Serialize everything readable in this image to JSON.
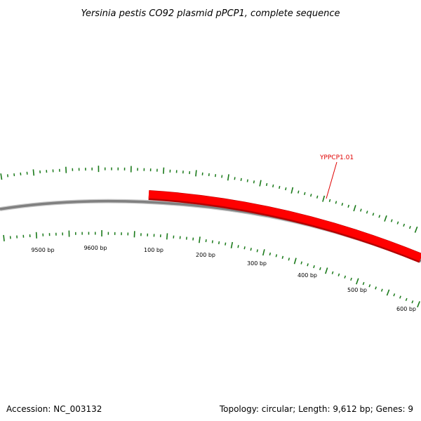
{
  "title": "Yersinia pestis CO92 plasmid pPCP1, complete sequence",
  "accession": "Accession: NC_003132",
  "summary": "Topology: circular; Length: 9,612 bp; Genes: 9",
  "colors": {
    "backbone": "#808080",
    "gene_feature": "#ff0000",
    "ticks": "#1a7a1a",
    "gene_label": "#e00000"
  },
  "gene": {
    "label": "YPPCP1.01",
    "strand": "outer"
  },
  "scale_labels": [
    "9500 bp",
    "9600 bp",
    "100 bp",
    "200 bp",
    "300 bp",
    "400 bp",
    "500 bp",
    "600 bp"
  ]
}
